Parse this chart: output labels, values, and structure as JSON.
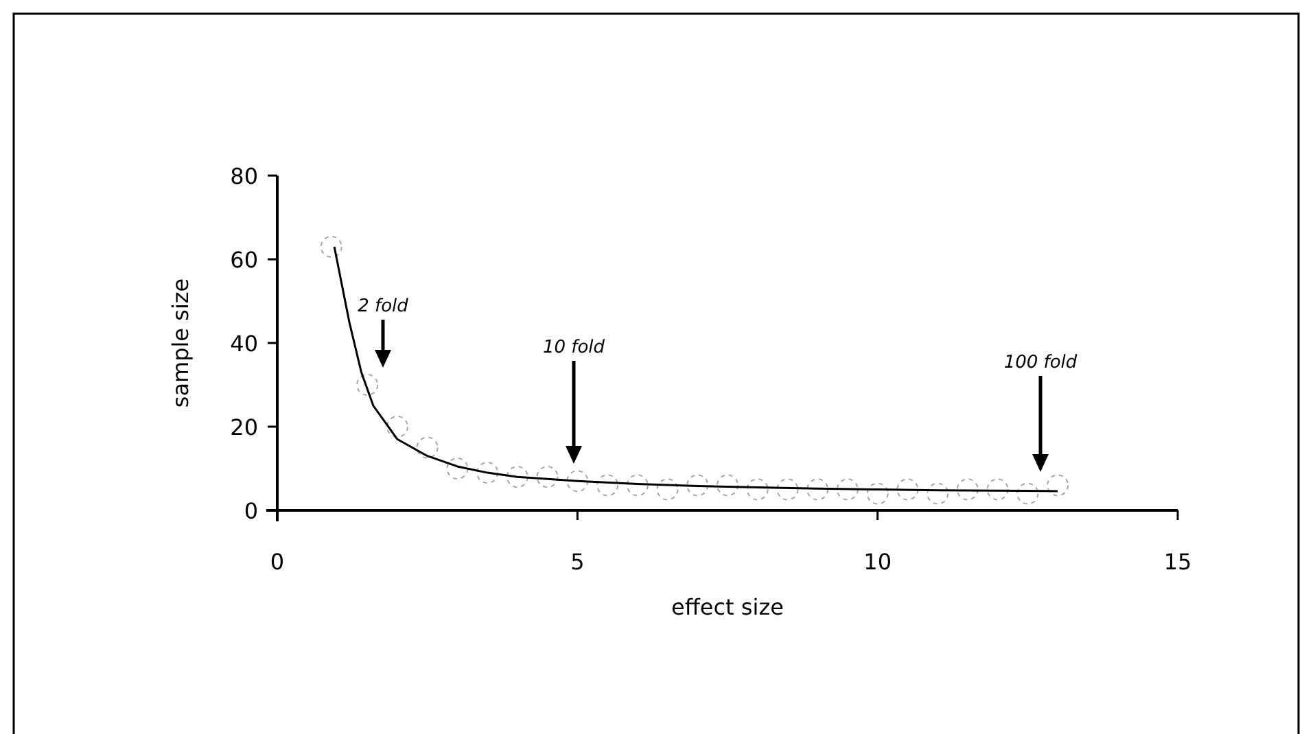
{
  "chart_data": {
    "type": "scatter",
    "xlabel": "effect size",
    "ylabel": "sample size",
    "xlim": [
      0,
      15
    ],
    "xticks": [
      0,
      5,
      10,
      15
    ],
    "ylim": [
      0,
      80
    ],
    "yticks": [
      0,
      20,
      40,
      60,
      80
    ],
    "grid": false,
    "series": [
      {
        "color": "#a6a6a6",
        "marker": "circle",
        "line_style": "dashed",
        "x": [
          0.9,
          1.5,
          2.0,
          2.5,
          3.0,
          3.5,
          4.0,
          4.5,
          5.0,
          5.5,
          6.0,
          6.5,
          7.0,
          7.5,
          8.0,
          8.5,
          9.0,
          9.5,
          10.0,
          10.5,
          11.0,
          11.5,
          12.0,
          12.5,
          13.0
        ],
        "values": [
          63,
          30,
          20,
          15,
          10,
          9,
          8,
          8,
          7,
          6,
          6,
          5,
          6,
          6,
          5,
          5,
          5,
          5,
          4,
          5,
          4,
          5,
          5,
          4,
          6
        ]
      },
      {
        "type": "line",
        "color": "#000000",
        "line_style": "solid",
        "marker": "none",
        "x": [
          0.95,
          1.2,
          1.4,
          1.6,
          1.8,
          2.0,
          2.5,
          3.0,
          3.5,
          4,
          5,
          6,
          7,
          8,
          9,
          10,
          11,
          12,
          13
        ],
        "values": [
          63,
          45,
          33,
          25,
          21,
          17,
          13,
          10.5,
          9,
          8,
          7,
          6.3,
          5.8,
          5.5,
          5.2,
          5,
          4.8,
          4.7,
          4.6
        ]
      }
    ],
    "annotations": [
      "2 fold",
      "10 fold",
      "100 fold"
    ]
  }
}
